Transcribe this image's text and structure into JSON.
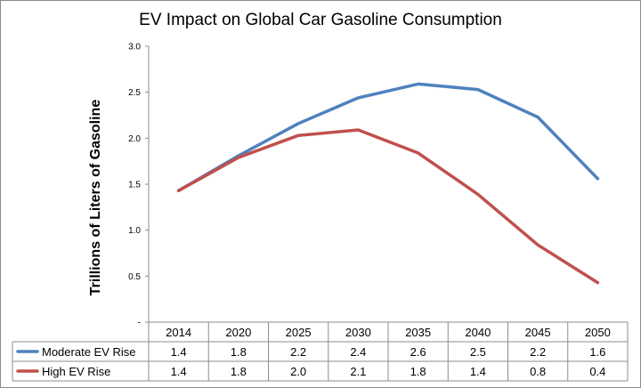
{
  "chart_data": {
    "type": "line",
    "title": "EV Impact on Global Car Gasoline Consumption",
    "ylabel": "Trillions of Liters of Gasoline",
    "xlabel": "",
    "categories": [
      "2014",
      "2020",
      "2025",
      "2030",
      "2035",
      "2040",
      "2045",
      "2050"
    ],
    "ylim": [
      0,
      3.0
    ],
    "yticks": [
      "-",
      "0.5",
      "1.0",
      "1.5",
      "2.0",
      "2.5",
      "3.0"
    ],
    "grid": false,
    "legend": "bottom-table",
    "series": [
      {
        "name": "Moderate EV Rise",
        "color": "#4f81bd",
        "values": [
          1.43,
          1.81,
          2.16,
          2.44,
          2.59,
          2.53,
          2.23,
          1.56
        ],
        "table_labels": [
          "1.4",
          "1.8",
          "2.2",
          "2.4",
          "2.6",
          "2.5",
          "2.2",
          "1.6"
        ]
      },
      {
        "name": "High EV Rise",
        "color": "#c0504d",
        "values": [
          1.43,
          1.79,
          2.03,
          2.09,
          1.84,
          1.39,
          0.84,
          0.43
        ],
        "table_labels": [
          "1.4",
          "1.8",
          "2.0",
          "2.1",
          "1.8",
          "1.4",
          "0.8",
          "0.4"
        ]
      }
    ]
  }
}
